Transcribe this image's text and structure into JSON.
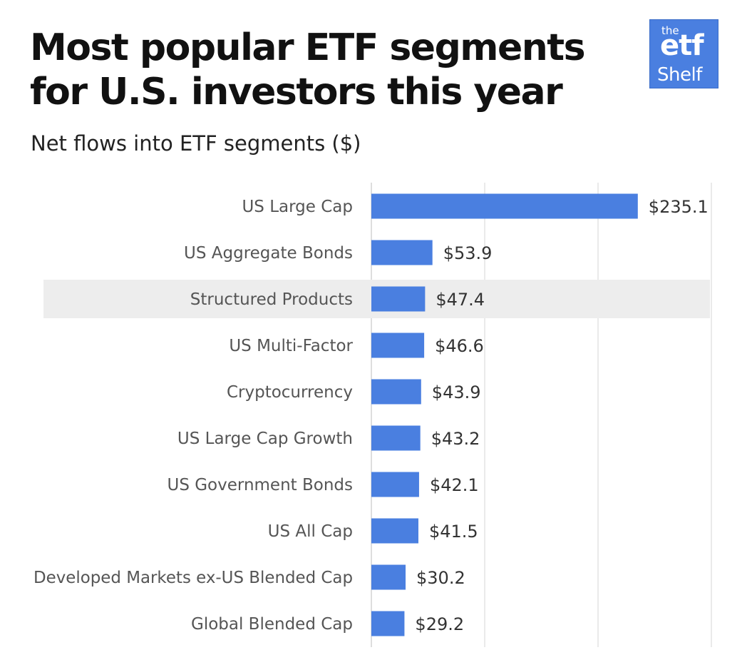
{
  "header": {
    "title": "Most popular ETF segments for U.S. investors this year",
    "subtitle": "Net flows into ETF segments ($)"
  },
  "logo": {
    "line1": "the",
    "line2": "etf",
    "line3": "Shelf",
    "background_color": "#4a7fe0"
  },
  "chart_data": {
    "type": "bar",
    "orientation": "horizontal",
    "title": "Most popular ETF segments for U.S. investors this year",
    "subtitle": "Net flows into ETF segments ($)",
    "categories": [
      "US Large Cap",
      "US Aggregate Bonds",
      "Structured Products",
      "US Multi-Factor",
      "Cryptocurrency",
      "US Large Cap Growth",
      "US Government Bonds",
      "US All Cap",
      "Developed Markets ex-US Blended Cap",
      "Global Blended Cap"
    ],
    "values": [
      235.1,
      53.9,
      47.4,
      46.6,
      43.9,
      43.2,
      42.1,
      41.5,
      30.2,
      29.2
    ],
    "value_labels": [
      "$235.1",
      "$53.9",
      "$47.4",
      "$46.6",
      "$43.9",
      "$43.2",
      "$42.1",
      "$41.5",
      "$30.2",
      "$29.2"
    ],
    "highlighted_category": "Structured Products",
    "xlim": [
      0,
      300
    ],
    "grid": true,
    "legend": "none",
    "bar_color": "#4a7fe0",
    "highlight_color": "#ededed",
    "grid_color": "#e3e3e3",
    "label_color": "#555555",
    "value_color": "#333333"
  }
}
